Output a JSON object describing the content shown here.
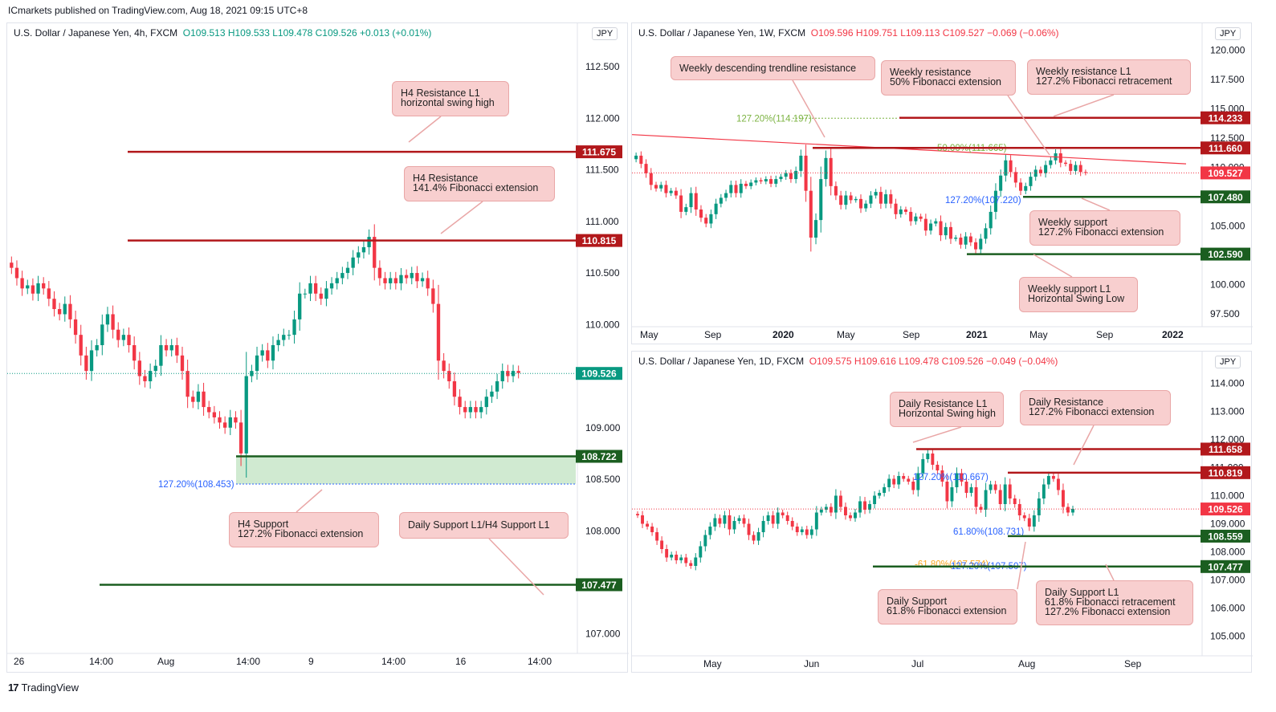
{
  "header": {
    "publisher": "ICmarkets published on TradingView.com, Aug 18, 2021 09:15 UTC+8"
  },
  "footer": {
    "logo": "17",
    "brand": "TradingView"
  },
  "colors": {
    "up": "#089981",
    "down": "#f23645",
    "resistance": "#b2181b",
    "support": "#1b5e20",
    "label_support": "#1b5e20",
    "label_resistance": "#b2181b",
    "current": "#089981",
    "current_neg": "#f23645",
    "fib_blue": "#2962ff",
    "fib_green": "#7cb342",
    "zone": "#c8e6c9",
    "note_bg": "#f8cfcf"
  },
  "chart_data": [
    {
      "type": "candlestick",
      "title": "U.S. Dollar / Japanese Yen, 4h, FXCM",
      "ohlc": {
        "o": "O109.513",
        "h": "H109.533",
        "l": "L109.478",
        "c": "C109.526",
        "chg": "+0.013 (+0.01%)"
      },
      "currency": "JPY",
      "ylim": [
        106.85,
        112.75
      ],
      "yticks": [
        "112.500",
        "112.000",
        "111.500",
        "111.000",
        "110.500",
        "110.000",
        "109.500",
        "109.000",
        "108.500",
        "108.000",
        "107.500",
        "107.000"
      ],
      "ytick_values": [
        112.5,
        112.0,
        111.5,
        111.0,
        110.5,
        110.0,
        109.5,
        109.0,
        108.5,
        108.0,
        107.5,
        107.0
      ],
      "xticks": [
        "26",
        "14:00",
        "Aug",
        "14:00",
        "9",
        "14:00",
        "16",
        "14:00"
      ],
      "closes": [
        110.55,
        110.45,
        110.35,
        110.38,
        110.3,
        110.4,
        110.35,
        110.25,
        110.15,
        110.1,
        110.2,
        110.05,
        109.9,
        109.7,
        109.55,
        109.75,
        109.8,
        110.0,
        110.1,
        109.95,
        109.85,
        109.9,
        109.8,
        109.65,
        109.5,
        109.45,
        109.55,
        109.6,
        109.8,
        109.75,
        109.8,
        109.7,
        109.55,
        109.3,
        109.25,
        109.35,
        109.2,
        109.15,
        109.1,
        109.05,
        109.0,
        109.1,
        109.05,
        108.75,
        109.5,
        109.55,
        109.7,
        109.75,
        109.65,
        109.8,
        109.85,
        109.9,
        109.9,
        110.05,
        110.3,
        110.3,
        110.4,
        110.3,
        110.25,
        110.35,
        110.4,
        110.45,
        110.5,
        110.55,
        110.65,
        110.7,
        110.75,
        110.85,
        110.55,
        110.45,
        110.4,
        110.45,
        110.4,
        110.48,
        110.45,
        110.5,
        110.42,
        110.45,
        110.35,
        110.2,
        109.65,
        109.55,
        109.45,
        109.3,
        109.2,
        109.15,
        109.2,
        109.15,
        109.2,
        109.3,
        109.35,
        109.45,
        109.55,
        109.5,
        109.55,
        109.53
      ],
      "levels": [
        {
          "value": 111.675,
          "label": "111.675",
          "kind": "resistance"
        },
        {
          "value": 110.815,
          "label": "110.815",
          "kind": "resistance"
        },
        {
          "value": 108.722,
          "label": "108.722",
          "kind": "support"
        },
        {
          "value": 107.477,
          "label": "107.477",
          "kind": "support"
        }
      ],
      "current": {
        "value": 109.526,
        "label": "109.526"
      },
      "fib_labels": [
        {
          "text": "127.20%(108.453)",
          "value": 108.453
        }
      ],
      "annotations": [
        {
          "line1": "H4 Resistance L1",
          "line2": "horizontal swing high"
        },
        {
          "line1": "H4 Resistance",
          "line2": "141.4% Fibonacci extension"
        },
        {
          "line1": "H4 Support",
          "line2": "127.2% Fibonacci extension"
        },
        {
          "line1": "Daily Support L1/H4 Support L1",
          "line2": ""
        }
      ]
    },
    {
      "type": "candlestick",
      "title": "U.S. Dollar / Japanese Yen, 1W, FXCM",
      "ohlc": {
        "o": "O109.596",
        "h": "H109.751",
        "l": "L109.113",
        "c": "C109.527",
        "chg": "−0.069 (−0.06%)"
      },
      "currency": "JPY",
      "ylim": [
        96.8,
        120.8
      ],
      "yticks": [
        "120.000",
        "117.500",
        "115.000",
        "112.500",
        "110.000",
        "107.500",
        "105.000",
        "102.500",
        "100.000",
        "97.500"
      ],
      "ytick_values": [
        120,
        117.5,
        115,
        112.5,
        110,
        107.5,
        105,
        102.5,
        100,
        97.5
      ],
      "xticks": [
        "May",
        "Sep",
        "2020",
        "May",
        "Sep",
        "2021",
        "May",
        "Sep",
        "2022"
      ],
      "closes": [
        111.0,
        110.3,
        109.5,
        108.5,
        108.2,
        108.5,
        107.8,
        108.0,
        107.6,
        106.2,
        106.6,
        107.8,
        106.4,
        105.7,
        105.2,
        106.0,
        106.9,
        107.4,
        107.8,
        108.5,
        107.8,
        108.6,
        108.4,
        108.7,
        108.9,
        108.8,
        109.0,
        108.6,
        109.0,
        109.2,
        109.5,
        109.0,
        109.7,
        111.0,
        108.0,
        104.0,
        105.5,
        109.0,
        110.8,
        108.4,
        107.6,
        106.8,
        107.6,
        107.2,
        107.3,
        106.5,
        106.9,
        107.6,
        107.9,
        106.9,
        107.7,
        106.9,
        106.0,
        106.4,
        106.2,
        105.4,
        105.8,
        105.6,
        104.6,
        105.2,
        105.4,
        104.2,
        104.9,
        103.9,
        104.0,
        103.4,
        104.1,
        103.6,
        103.0,
        103.9,
        104.8,
        106.2,
        108.0,
        109.3,
        110.6,
        109.6,
        108.7,
        108.0,
        108.4,
        109.2,
        109.8,
        109.5,
        110.2,
        110.6,
        111.2,
        110.4,
        110.3,
        109.7,
        110.2,
        109.6,
        109.53
      ],
      "levels": [
        {
          "value": 114.233,
          "label": "114.233",
          "kind": "resistance"
        },
        {
          "value": 111.66,
          "label": "111.660",
          "kind": "resistance"
        },
        {
          "value": 107.48,
          "label": "107.480",
          "kind": "support"
        },
        {
          "value": 102.59,
          "label": "102.590",
          "kind": "support"
        }
      ],
      "current": {
        "value": 109.527,
        "label": "109.527"
      },
      "fib_labels": [
        {
          "text": "127.20%(114.197)",
          "value": 114.197,
          "color": "green"
        },
        {
          "text": "50.00%(111.665)",
          "value": 111.665,
          "color": "green"
        },
        {
          "text": "127.20%(107.220)",
          "value": 107.22,
          "color": "blue"
        }
      ],
      "annotations": [
        {
          "line1": "Weekly descending trendline resistance",
          "line2": ""
        },
        {
          "line1": "Weekly resistance",
          "line2": "50% Fibonacci extension"
        },
        {
          "line1": "Weekly resistance L1",
          "line2": "127.2% Fibonacci retracement"
        },
        {
          "line1": "Weekly support",
          "line2": "127.2% Fibonacci extension"
        },
        {
          "line1": "Weekly support L1",
          "line2": "Horizontal Swing Low"
        }
      ]
    },
    {
      "type": "candlestick",
      "title": "U.S. Dollar / Japanese Yen, 1D, FXCM",
      "ohlc": {
        "o": "O109.575",
        "h": "H109.616",
        "l": "L109.478",
        "c": "C109.526",
        "chg": "−0.049 (−0.04%)"
      },
      "currency": "JPY",
      "ylim": [
        104.5,
        114.5
      ],
      "yticks": [
        "114.000",
        "113.000",
        "112.000",
        "111.000",
        "110.000",
        "109.000",
        "108.000",
        "107.000",
        "106.000",
        "105.000"
      ],
      "ytick_values": [
        114,
        113,
        112,
        111,
        110,
        109,
        108,
        107,
        106,
        105
      ],
      "xticks": [
        "May",
        "Jun",
        "Jul",
        "Aug",
        "Sep"
      ],
      "closes": [
        109.3,
        109.0,
        108.9,
        108.7,
        108.4,
        108.1,
        107.8,
        107.9,
        107.7,
        107.8,
        107.6,
        107.5,
        107.8,
        108.2,
        108.6,
        108.9,
        109.2,
        109.0,
        109.3,
        108.8,
        109.1,
        109.2,
        109.0,
        108.6,
        108.4,
        108.7,
        109.1,
        109.3,
        109.0,
        109.4,
        109.3,
        109.1,
        108.9,
        108.7,
        108.8,
        108.6,
        108.8,
        109.4,
        109.5,
        109.6,
        109.4,
        110.0,
        109.6,
        109.3,
        109.2,
        109.4,
        109.8,
        109.5,
        109.7,
        110.0,
        110.1,
        110.3,
        110.6,
        110.4,
        110.7,
        110.6,
        110.5,
        110.2,
        110.8,
        111.3,
        111.5,
        111.1,
        110.9,
        110.5,
        109.8,
        110.3,
        110.8,
        110.5,
        110.1,
        110.3,
        109.6,
        109.5,
        110.2,
        110.4,
        110.2,
        109.7,
        110.4,
        109.9,
        109.7,
        109.3,
        109.2,
        108.9,
        109.3,
        109.9,
        110.4,
        110.7,
        110.6,
        110.2,
        109.6,
        109.4,
        109.53
      ],
      "levels": [
        {
          "value": 111.658,
          "label": "111.658",
          "kind": "resistance"
        },
        {
          "value": 110.819,
          "label": "110.819",
          "kind": "resistance"
        },
        {
          "value": 108.559,
          "label": "108.559",
          "kind": "support"
        },
        {
          "value": 107.477,
          "label": "107.477",
          "kind": "support"
        }
      ],
      "current": {
        "value": 109.526,
        "label": "109.526"
      },
      "fib_labels": [
        {
          "text": "127.20%(110.667)",
          "value": 110.667,
          "color": "blue"
        },
        {
          "text": "61.80%(108.731)",
          "value": 108.731,
          "color": "blue"
        },
        {
          "text": "-61.80%(107.574)",
          "value": 107.574,
          "color": "orange"
        },
        {
          "text": "127.20%(107.507)",
          "value": 107.507,
          "color": "blue"
        }
      ],
      "annotations": [
        {
          "line1": "Daily Resistance L1",
          "line2": "Horizontal Swing high"
        },
        {
          "line1": "Daily Resistance",
          "line2": "127.2% Fibonacci extension"
        },
        {
          "line1": "Daily Support",
          "line2": "61.8% Fibonacci extension"
        },
        {
          "line1": "Daily Support L1",
          "line2": "61.8% Fibonacci retracement",
          "line3": "127.2% Fibonacci extension"
        }
      ]
    }
  ]
}
